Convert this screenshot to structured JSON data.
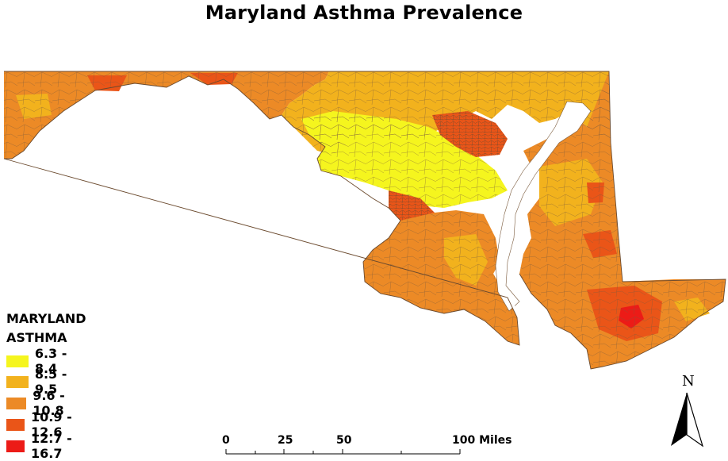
{
  "title": "Maryland Asthma Prevalence",
  "legend": {
    "title_line1": "MARYLAND",
    "title_line2": "ASTHMA",
    "classes": [
      {
        "label": "6.3 - 8.4",
        "color": "#f5f51e"
      },
      {
        "label": "8.5 - 9.5",
        "color": "#f2b21d"
      },
      {
        "label": "9.6 - 10.8",
        "color": "#ec8a26"
      },
      {
        "label": "10.9 - 12.6",
        "color": "#ea5518"
      },
      {
        "label": "12.7 - 16.7",
        "color": "#ec1b17"
      }
    ]
  },
  "scale_bar": {
    "labels": [
      "0",
      "25",
      "50",
      "100 Miles"
    ]
  },
  "north_arrow": {
    "label": "N",
    "icon": "north-arrow-icon"
  },
  "colors": {
    "boundary": "#7a5a3c",
    "low": "#f5f51e",
    "mid_low": "#f2b21d",
    "mid": "#ec8a26",
    "high": "#ea5518",
    "very_high": "#ec1b17"
  }
}
